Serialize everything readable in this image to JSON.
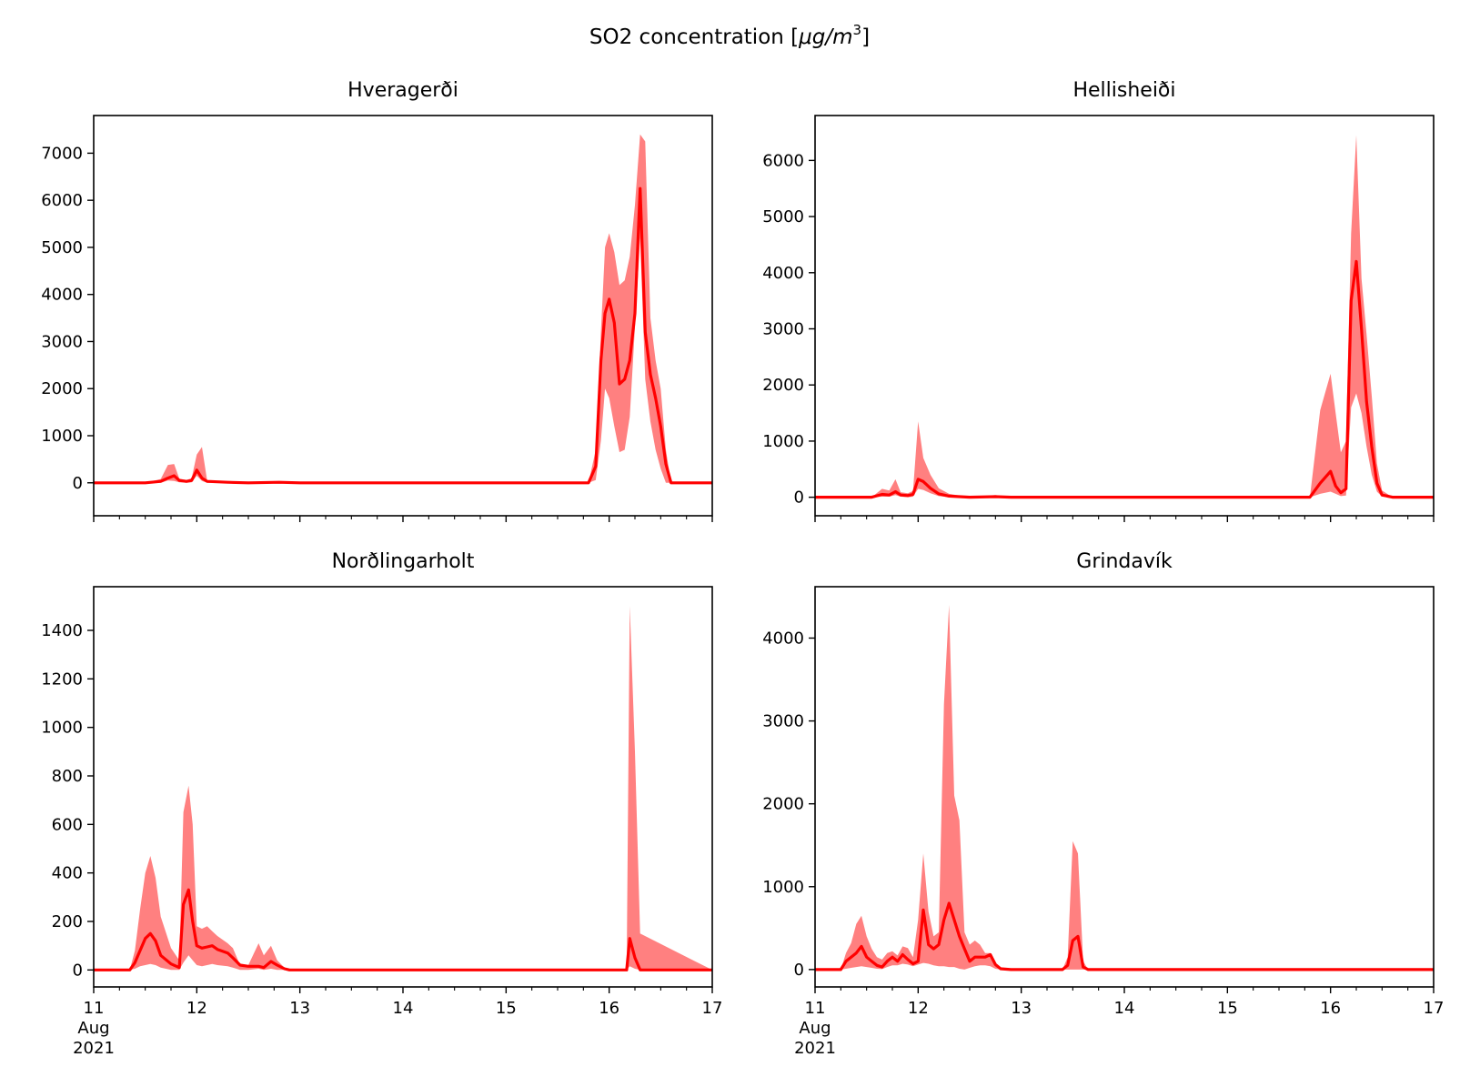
{
  "figure": {
    "suptitle": "SO2 concentration [",
    "suptitle_mu": "μ",
    "suptitle_g": "g",
    "suptitle_slash": "/",
    "suptitle_m": "m",
    "suptitle_exp": "3",
    "suptitle_end": "]"
  },
  "colors": {
    "line": "#ff0000",
    "band": "#ff8080",
    "axes": "#000000",
    "background": "#ffffff"
  },
  "x_axis": {
    "ticks": [
      11,
      12,
      13,
      14,
      15,
      16,
      17
    ],
    "tick_labels": [
      "11",
      "12",
      "13",
      "14",
      "15",
      "16",
      "17"
    ],
    "first_tick_month": "Aug",
    "first_tick_year": "2021",
    "range": [
      11,
      17
    ]
  },
  "chart_data": [
    {
      "type": "line",
      "title": "Hveragerði",
      "xlabel": "",
      "ylabel": "",
      "xlim": [
        11,
        17
      ],
      "ylim": [
        -700,
        7800
      ],
      "yticks": [
        0,
        1000,
        2000,
        3000,
        4000,
        5000,
        6000,
        7000
      ],
      "grid": false,
      "show_xticklabels": false,
      "series": [
        {
          "kind": "line",
          "x": [
            11,
            11.5,
            11.65,
            11.72,
            11.78,
            11.83,
            11.9,
            11.95,
            12.0,
            12.05,
            12.1,
            12.2,
            12.3,
            12.5,
            12.8,
            13,
            15.8,
            15.87,
            15.92,
            15.96,
            16.0,
            16.05,
            16.1,
            16.15,
            16.2,
            16.25,
            16.3,
            16.35,
            16.4,
            16.45,
            16.5,
            16.55,
            16.6,
            17
          ],
          "y": [
            0,
            0,
            30,
            100,
            150,
            50,
            30,
            50,
            270,
            100,
            30,
            20,
            10,
            0,
            10,
            0,
            0,
            350,
            2600,
            3600,
            3900,
            3400,
            2100,
            2200,
            2600,
            3600,
            6250,
            3200,
            2300,
            1800,
            1200,
            400,
            0,
            0
          ]
        },
        {
          "kind": "band",
          "x": [
            11,
            11.5,
            11.65,
            11.72,
            11.78,
            11.83,
            11.9,
            11.95,
            12.0,
            12.05,
            12.1,
            12.2,
            12.3,
            12.5,
            12.8,
            13,
            15.8,
            15.87,
            15.92,
            15.96,
            16.0,
            16.05,
            16.1,
            16.15,
            16.2,
            16.25,
            16.3,
            16.35,
            16.4,
            16.45,
            16.5,
            16.55,
            16.6,
            17
          ],
          "y_low": [
            0,
            0,
            0,
            50,
            40,
            10,
            0,
            10,
            150,
            40,
            0,
            0,
            0,
            0,
            0,
            0,
            0,
            60,
            900,
            2000,
            1800,
            1200,
            650,
            700,
            1400,
            3300,
            5200,
            2200,
            1300,
            700,
            300,
            0,
            0,
            0
          ],
          "y_high": [
            0,
            0,
            80,
            380,
            400,
            90,
            60,
            100,
            600,
            760,
            50,
            40,
            20,
            0,
            20,
            0,
            0,
            700,
            3200,
            5000,
            5300,
            4900,
            4200,
            4300,
            4800,
            5900,
            7400,
            7250,
            3500,
            2600,
            2000,
            700,
            0,
            0
          ]
        }
      ]
    },
    {
      "type": "line",
      "title": "Hellisheiði",
      "xlabel": "",
      "ylabel": "",
      "xlim": [
        11,
        17
      ],
      "ylim": [
        -330,
        6800
      ],
      "yticks": [
        0,
        1000,
        2000,
        3000,
        4000,
        5000,
        6000
      ],
      "grid": false,
      "show_xticklabels": false,
      "series": [
        {
          "kind": "line",
          "x": [
            11,
            11.55,
            11.65,
            11.72,
            11.78,
            11.83,
            11.9,
            11.95,
            12.0,
            12.05,
            12.12,
            12.2,
            12.3,
            12.5,
            12.75,
            12.9,
            13,
            15.8,
            15.9,
            16.0,
            16.05,
            16.1,
            16.15,
            16.2,
            16.25,
            16.3,
            16.35,
            16.4,
            16.45,
            16.5,
            16.6,
            17
          ],
          "y": [
            0,
            0,
            50,
            40,
            100,
            40,
            30,
            50,
            320,
            280,
            160,
            60,
            20,
            0,
            10,
            0,
            0,
            0,
            250,
            460,
            200,
            80,
            150,
            3500,
            4200,
            3000,
            1700,
            900,
            250,
            40,
            0,
            0
          ]
        },
        {
          "kind": "band",
          "x": [
            11,
            11.55,
            11.65,
            11.72,
            11.78,
            11.83,
            11.9,
            11.95,
            12.0,
            12.05,
            12.12,
            12.2,
            12.3,
            12.5,
            12.75,
            12.9,
            13,
            15.8,
            15.9,
            16.0,
            16.05,
            16.1,
            16.15,
            16.2,
            16.25,
            16.3,
            16.35,
            16.4,
            16.45,
            16.5,
            16.6,
            17
          ],
          "y_low": [
            0,
            0,
            10,
            10,
            40,
            10,
            0,
            10,
            150,
            130,
            70,
            20,
            0,
            0,
            0,
            0,
            0,
            0,
            60,
            100,
            60,
            20,
            30,
            1600,
            1850,
            1500,
            900,
            400,
            100,
            10,
            0,
            0
          ],
          "y_high": [
            0,
            0,
            150,
            120,
            320,
            90,
            70,
            110,
            1350,
            700,
            400,
            160,
            60,
            0,
            40,
            0,
            0,
            0,
            1550,
            2200,
            1500,
            800,
            1000,
            4700,
            6450,
            3900,
            2900,
            1800,
            600,
            120,
            0,
            0
          ]
        }
      ]
    },
    {
      "type": "line",
      "title": "Norðlingarholt",
      "xlabel": "",
      "ylabel": "",
      "xlim": [
        11,
        17
      ],
      "ylim": [
        -70,
        1580
      ],
      "yticks": [
        0,
        200,
        400,
        600,
        800,
        1000,
        1200,
        1400
      ],
      "grid": false,
      "show_xticklabels": true,
      "series": [
        {
          "kind": "line",
          "x": [
            11,
            11.35,
            11.4,
            11.45,
            11.5,
            11.55,
            11.6,
            11.65,
            11.75,
            11.83,
            11.87,
            11.92,
            11.96,
            12.0,
            12.05,
            12.1,
            12.15,
            12.2,
            12.3,
            12.35,
            12.42,
            12.5,
            12.6,
            12.65,
            12.72,
            12.78,
            12.85,
            12.9,
            13,
            16.17,
            16.2,
            16.25,
            16.3,
            17
          ],
          "y": [
            0,
            0,
            30,
            80,
            130,
            150,
            120,
            60,
            25,
            10,
            270,
            330,
            200,
            100,
            90,
            95,
            100,
            85,
            70,
            50,
            20,
            15,
            15,
            10,
            35,
            20,
            5,
            0,
            0,
            0,
            130,
            50,
            0,
            0
          ]
        },
        {
          "kind": "band",
          "x": [
            11,
            11.35,
            11.4,
            11.45,
            11.5,
            11.55,
            11.6,
            11.65,
            11.75,
            11.83,
            11.87,
            11.92,
            11.96,
            12.0,
            12.05,
            12.1,
            12.15,
            12.2,
            12.3,
            12.35,
            12.42,
            12.5,
            12.6,
            12.65,
            12.72,
            12.78,
            12.85,
            12.9,
            13,
            16.17,
            16.2,
            16.25,
            16.3,
            17
          ],
          "y_low": [
            0,
            0,
            5,
            15,
            20,
            25,
            20,
            10,
            0,
            0,
            30,
            60,
            40,
            20,
            15,
            20,
            25,
            20,
            15,
            10,
            0,
            0,
            5,
            0,
            5,
            0,
            0,
            0,
            0,
            0,
            15,
            5,
            0,
            0
          ],
          "y_high": [
            0,
            0,
            80,
            250,
            400,
            470,
            380,
            220,
            90,
            40,
            650,
            760,
            600,
            180,
            170,
            180,
            160,
            140,
            110,
            90,
            20,
            20,
            110,
            60,
            100,
            40,
            10,
            0,
            0,
            0,
            1500,
            900,
            150,
            0
          ]
        }
      ]
    },
    {
      "type": "line",
      "title": "Grindavík",
      "xlabel": "",
      "ylabel": "",
      "xlim": [
        11,
        17
      ],
      "ylim": [
        -210,
        4620
      ],
      "yticks": [
        0,
        1000,
        2000,
        3000,
        4000
      ],
      "grid": false,
      "show_xticklabels": true,
      "series": [
        {
          "kind": "line",
          "x": [
            11,
            11.25,
            11.3,
            11.35,
            11.4,
            11.45,
            11.5,
            11.55,
            11.6,
            11.65,
            11.7,
            11.75,
            11.8,
            11.85,
            11.9,
            11.95,
            12.0,
            12.05,
            12.1,
            12.15,
            12.2,
            12.25,
            12.3,
            12.35,
            12.4,
            12.45,
            12.5,
            12.55,
            12.6,
            12.65,
            12.7,
            12.75,
            12.8,
            12.9,
            13.4,
            13.45,
            13.5,
            13.55,
            13.6,
            13.65,
            17
          ],
          "y": [
            0,
            0,
            100,
            150,
            200,
            280,
            150,
            100,
            50,
            30,
            100,
            150,
            100,
            180,
            120,
            70,
            100,
            720,
            300,
            250,
            300,
            600,
            800,
            600,
            400,
            250,
            100,
            150,
            150,
            150,
            180,
            60,
            10,
            0,
            0,
            50,
            350,
            400,
            30,
            0,
            0
          ]
        },
        {
          "kind": "band",
          "x": [
            11,
            11.25,
            11.3,
            11.35,
            11.4,
            11.45,
            11.5,
            11.55,
            11.6,
            11.65,
            11.7,
            11.75,
            11.8,
            11.85,
            11.9,
            11.95,
            12.0,
            12.05,
            12.1,
            12.15,
            12.2,
            12.25,
            12.3,
            12.35,
            12.4,
            12.45,
            12.5,
            12.55,
            12.6,
            12.65,
            12.7,
            12.75,
            12.8,
            12.9,
            13.4,
            13.45,
            13.5,
            13.55,
            13.6,
            13.65,
            17
          ],
          "y_low": [
            0,
            0,
            10,
            20,
            30,
            40,
            30,
            20,
            10,
            5,
            30,
            50,
            50,
            70,
            60,
            40,
            60,
            80,
            70,
            50,
            40,
            40,
            30,
            30,
            10,
            0,
            20,
            40,
            50,
            50,
            40,
            10,
            0,
            0,
            0,
            0,
            0,
            0,
            0,
            0,
            0
          ],
          "y_high": [
            0,
            0,
            200,
            320,
            550,
            650,
            400,
            250,
            150,
            120,
            200,
            220,
            170,
            280,
            260,
            150,
            600,
            1400,
            700,
            400,
            450,
            3200,
            4400,
            2100,
            1800,
            450,
            300,
            350,
            300,
            200,
            200,
            80,
            20,
            0,
            0,
            150,
            1550,
            1400,
            100,
            0,
            0
          ]
        }
      ]
    }
  ]
}
